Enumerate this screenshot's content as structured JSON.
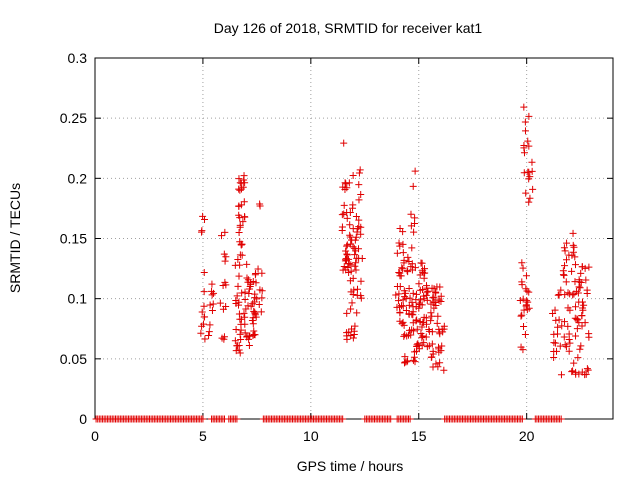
{
  "chart_data": {
    "type": "scatter",
    "title": "Day 126 of 2018, SRMTID for receiver kat1",
    "xlabel": "GPS time / hours",
    "ylabel": "SRMTID / TECUs",
    "xlim": [
      0,
      24
    ],
    "ylim": [
      0,
      0.3
    ],
    "xticks": [
      0,
      5,
      10,
      15,
      20
    ],
    "yticks": [
      0,
      0.05,
      0.1,
      0.15,
      0.2,
      0.25,
      0.3
    ],
    "ytick_labels": [
      "0",
      "0.05",
      "0.1",
      "0.15",
      "0.2",
      "0.25",
      "0.3"
    ],
    "grid": true,
    "marker": "+",
    "color": "#e00000",
    "zero_segments": [
      [
        0.05,
        5.0
      ],
      [
        5.4,
        6.0
      ],
      [
        6.2,
        6.6
      ],
      [
        7.8,
        11.5
      ],
      [
        12.5,
        13.7
      ],
      [
        14.0,
        14.6
      ],
      [
        16.2,
        19.8
      ],
      [
        20.4,
        21.6
      ]
    ],
    "clusters": [
      {
        "x": [
          4.9,
          5.1
        ],
        "y": [
          0.065,
          0.18
        ],
        "n": 14
      },
      {
        "x": [
          5.25,
          5.5
        ],
        "y": [
          0.065,
          0.12
        ],
        "n": 10
      },
      {
        "x": [
          5.8,
          6.1
        ],
        "y": [
          0.06,
          0.16
        ],
        "n": 14
      },
      {
        "x": [
          6.5,
          6.8
        ],
        "y": [
          0.05,
          0.135
        ],
        "n": 26
      },
      {
        "x": [
          6.6,
          6.95
        ],
        "y": [
          0.135,
          0.21
        ],
        "n": 28
      },
      {
        "x": [
          6.9,
          7.45
        ],
        "y": [
          0.06,
          0.13
        ],
        "n": 38
      },
      {
        "x": [
          7.4,
          7.75
        ],
        "y": [
          0.08,
          0.125
        ],
        "n": 14
      },
      {
        "x": [
          7.6,
          7.7
        ],
        "y": [
          0.175,
          0.18
        ],
        "n": 2
      },
      {
        "x": [
          11.4,
          11.6
        ],
        "y": [
          0.229,
          0.23
        ],
        "n": 1
      },
      {
        "x": [
          11.45,
          11.9
        ],
        "y": [
          0.12,
          0.2
        ],
        "n": 34
      },
      {
        "x": [
          11.6,
          12.2
        ],
        "y": [
          0.065,
          0.16
        ],
        "n": 32
      },
      {
        "x": [
          11.9,
          12.4
        ],
        "y": [
          0.1,
          0.215
        ],
        "n": 26
      },
      {
        "x": [
          13.9,
          14.3
        ],
        "y": [
          0.075,
          0.16
        ],
        "n": 28
      },
      {
        "x": [
          14.3,
          14.9
        ],
        "y": [
          0.045,
          0.14
        ],
        "n": 50
      },
      {
        "x": [
          14.6,
          14.85
        ],
        "y": [
          0.14,
          0.21
        ],
        "n": 8
      },
      {
        "x": [
          14.9,
          15.5
        ],
        "y": [
          0.055,
          0.13
        ],
        "n": 50
      },
      {
        "x": [
          15.5,
          16.2
        ],
        "y": [
          0.04,
          0.115
        ],
        "n": 45
      },
      {
        "x": [
          19.7,
          20.0
        ],
        "y": [
          0.055,
          0.14
        ],
        "n": 18
      },
      {
        "x": [
          19.85,
          20.3
        ],
        "y": [
          0.165,
          0.26
        ],
        "n": 20
      },
      {
        "x": [
          20.0,
          20.15
        ],
        "y": [
          0.09,
          0.11
        ],
        "n": 5
      },
      {
        "x": [
          21.2,
          21.6
        ],
        "y": [
          0.05,
          0.11
        ],
        "n": 16
      },
      {
        "x": [
          21.6,
          22.3
        ],
        "y": [
          0.035,
          0.155
        ],
        "n": 45
      },
      {
        "x": [
          22.3,
          22.9
        ],
        "y": [
          0.035,
          0.13
        ],
        "n": 40
      }
    ]
  }
}
